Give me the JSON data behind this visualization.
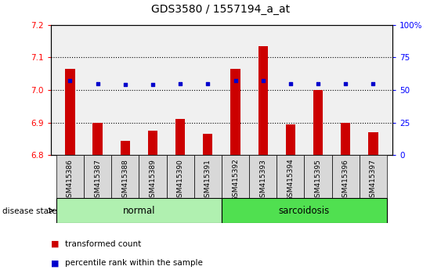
{
  "title": "GDS3580 / 1557194_a_at",
  "samples": [
    "GSM415386",
    "GSM415387",
    "GSM415388",
    "GSM415389",
    "GSM415390",
    "GSM415391",
    "GSM415392",
    "GSM415393",
    "GSM415394",
    "GSM415395",
    "GSM415396",
    "GSM415397"
  ],
  "transformed_count": [
    7.065,
    6.9,
    6.845,
    6.875,
    6.91,
    6.865,
    7.065,
    7.135,
    6.895,
    7.0,
    6.9,
    6.87
  ],
  "percentile_rank": [
    57,
    55,
    54,
    54,
    55,
    55,
    57,
    57,
    55,
    55,
    55,
    55
  ],
  "ylim_left": [
    6.8,
    7.2
  ],
  "ylim_right": [
    0,
    100
  ],
  "yticks_left": [
    6.8,
    6.9,
    7.0,
    7.1,
    7.2
  ],
  "yticks_right": [
    0,
    25,
    50,
    75,
    100
  ],
  "group_normal_indices": [
    0,
    1,
    2,
    3,
    4,
    5
  ],
  "group_sarc_indices": [
    6,
    7,
    8,
    9,
    10,
    11
  ],
  "group_normal_color": "#b0f0b0",
  "group_sarc_color": "#50e050",
  "bar_color": "#CC0000",
  "dot_color": "#0000CC",
  "bar_bottom": 6.8,
  "bg_color": "#F0F0F0",
  "legend_label_1": "transformed count",
  "legend_label_2": "percentile rank within the sample",
  "legend_color_1": "#CC0000",
  "legend_color_2": "#0000CC"
}
